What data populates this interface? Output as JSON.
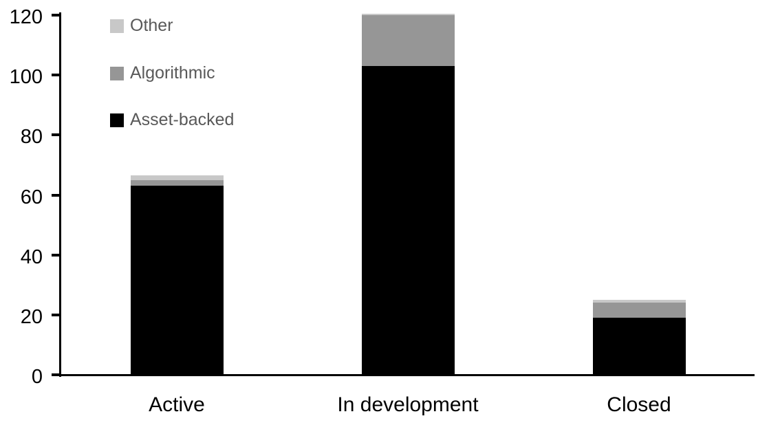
{
  "chart_data": {
    "type": "bar",
    "stacked": true,
    "title": "",
    "xlabel": "",
    "ylabel": "",
    "categories": [
      "Active",
      "In development",
      "Closed"
    ],
    "series": [
      {
        "name": "Asset-backed",
        "color": "#000000",
        "values": [
          63,
          103,
          19
        ]
      },
      {
        "name": "Algorithmic",
        "color": "#969696",
        "values": [
          2,
          17,
          5
        ]
      },
      {
        "name": "Other",
        "color": "#c8c8c8",
        "values": [
          1.5,
          0.5,
          1
        ]
      }
    ],
    "stack_totals": [
      66.5,
      120.5,
      25
    ],
    "ylim": [
      0,
      120
    ],
    "yticks": [
      0,
      20,
      40,
      60,
      80,
      100,
      120
    ],
    "legend": {
      "position": "top-left",
      "order_top_to_bottom": [
        "Other",
        "Algorithmic",
        "Asset-backed"
      ],
      "text_color": "#595959"
    },
    "grid": false,
    "bar_color_axis": "#000000"
  },
  "layout_values": {
    "note_axis_color": "#000000"
  }
}
